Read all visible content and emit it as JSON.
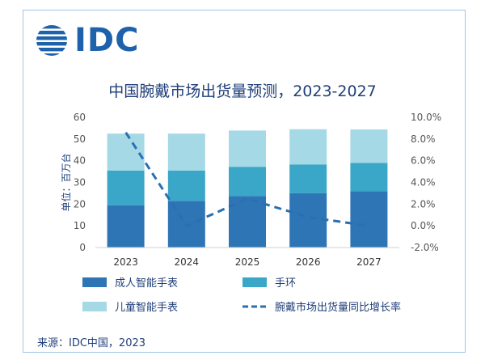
{
  "logo": {
    "text": "IDC"
  },
  "chart_data": {
    "type": "bar",
    "title": "中国腕戴市场出货量预测，2023-2027",
    "ylabel": "单位：百万台",
    "categories": [
      "2023",
      "2024",
      "2025",
      "2026",
      "2027"
    ],
    "ylim": [
      0,
      60
    ],
    "y_ticks": [
      "0",
      "10",
      "20",
      "30",
      "40",
      "50",
      "60"
    ],
    "y2lim": [
      -2.0,
      10.0
    ],
    "y2_ticks": [
      "-2.0%",
      "0.0%",
      "2.0%",
      "4.0%",
      "6.0%",
      "8.0%",
      "10.0%"
    ],
    "stacked": true,
    "series": [
      {
        "name": "成人智能手表",
        "type": "bar",
        "color": "#2e75b6",
        "values": [
          19.5,
          21.5,
          23.7,
          25.0,
          26.0
        ]
      },
      {
        "name": "手环",
        "type": "bar",
        "color": "#3aa7c8",
        "values": [
          16.0,
          14.0,
          13.5,
          13.3,
          13.0
        ]
      },
      {
        "name": "儿童智能手表",
        "type": "bar",
        "color": "#a6d9e6",
        "values": [
          17.0,
          17.0,
          16.7,
          16.2,
          15.4
        ]
      },
      {
        "name": "腕戴市场出货量同比增长率",
        "type": "line",
        "axis": "right",
        "style": "dashed",
        "color": "#2a6fb0",
        "values": [
          8.6,
          0.0,
          2.5,
          0.8,
          0.0
        ]
      }
    ],
    "legend_position": "bottom",
    "grid": false
  },
  "source": "来源：IDC中国，2023"
}
